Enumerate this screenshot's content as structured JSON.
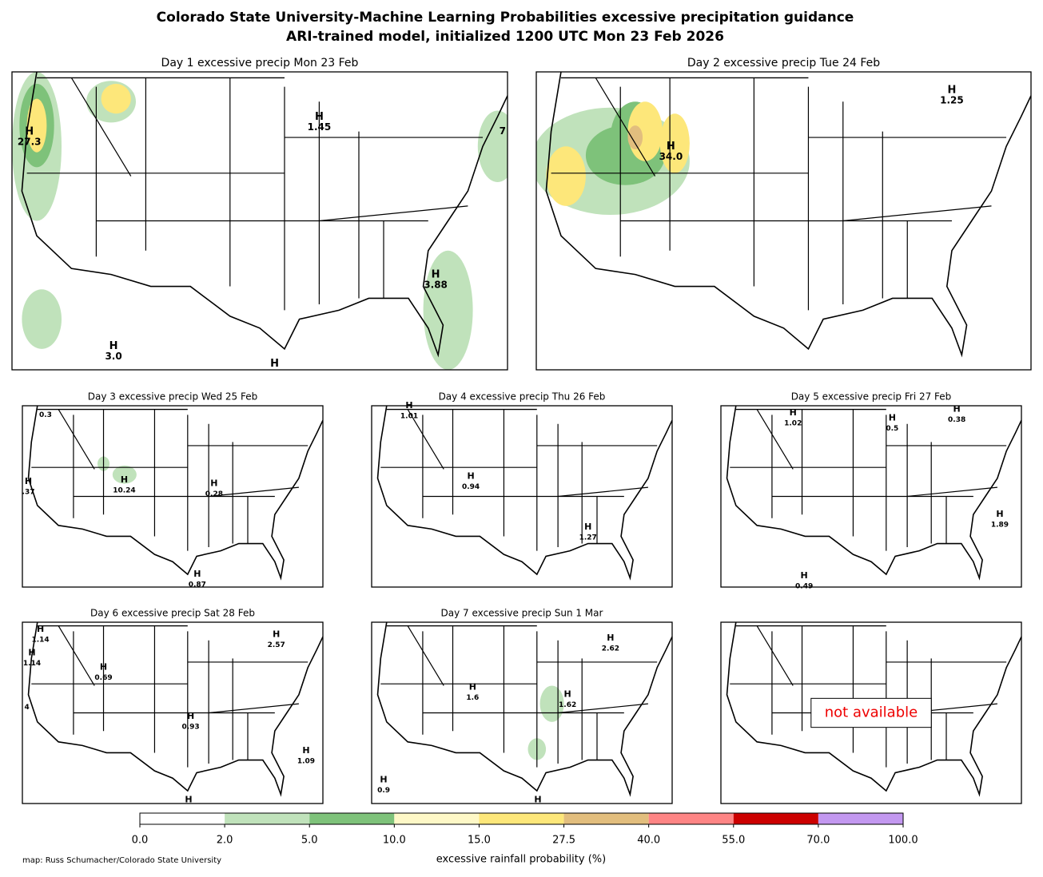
{
  "title": [
    "Colorado State University-Machine Learning Probabilities excessive precipitation guidance",
    "ARI-trained model, initialized 1200 UTC Mon 23 Feb 2026"
  ],
  "panels": [
    {
      "title": "Day 1 excessive precip  Mon 23 Feb",
      "maxima": [
        {
          "marker": "H",
          "value": "27.3"
        },
        {
          "marker": "H",
          "value": "1.45"
        },
        {
          "value": "7"
        },
        {
          "marker": "H",
          "value": "3.88"
        },
        {
          "marker": "H",
          "value": "3.0"
        },
        {
          "marker": "H"
        }
      ]
    },
    {
      "title": "Day 2 excessive precip  Tue 24 Feb",
      "maxima": [
        {
          "marker": "H",
          "value": "1.25"
        },
        {
          "marker": "H",
          "value": "34.0"
        }
      ]
    },
    {
      "title": "Day 3 excessive precip  Wed 25 Feb",
      "maxima": [
        {
          "value": "0.3"
        },
        {
          "marker": "H",
          "value": "10.24"
        },
        {
          "marker": "H",
          "value": "0.28"
        },
        {
          "marker": "H",
          "value": ".37"
        },
        {
          "marker": "H",
          "value": "0.87"
        }
      ]
    },
    {
      "title": "Day 4 excessive precip  Thu 26 Feb",
      "maxima": [
        {
          "marker": "H",
          "value": "1.01"
        },
        {
          "marker": "H",
          "value": "0.94"
        },
        {
          "marker": "H",
          "value": "1.27"
        }
      ]
    },
    {
      "title": "Day 5 excessive precip  Fri 27 Feb",
      "maxima": [
        {
          "marker": "H",
          "value": "1.02"
        },
        {
          "marker": "H",
          "value": "0.5"
        },
        {
          "marker": "H",
          "value": "0.38"
        },
        {
          "marker": "H",
          "value": "1.89"
        },
        {
          "marker": "H",
          "value": "0.49"
        }
      ]
    },
    {
      "title": "Day 6 excessive precip  Sat 28 Feb",
      "maxima": [
        {
          "marker": "H",
          "value": "1.14"
        },
        {
          "marker": "H",
          "value": "1.14"
        },
        {
          "marker": "H",
          "value": "0.69"
        },
        {
          "value": "4"
        },
        {
          "marker": "H",
          "value": "0.93"
        },
        {
          "marker": "H",
          "value": "2.57"
        },
        {
          "marker": "H",
          "value": "1.09"
        },
        {
          "marker": "H"
        }
      ]
    },
    {
      "title": "Day 7 excessive precip  Sun 1 Mar",
      "maxima": [
        {
          "marker": "H",
          "value": "2.62"
        },
        {
          "marker": "H",
          "value": "1.6"
        },
        {
          "marker": "H",
          "value": "1.62"
        },
        {
          "marker": "H",
          "value": "0.9"
        },
        {
          "marker": "H"
        }
      ]
    },
    {
      "unavailable": "not available"
    }
  ],
  "colorbar": {
    "ticks": [
      {
        "value": 0,
        "label": "0.0"
      },
      {
        "value": 2,
        "label": "2.0"
      },
      {
        "value": 5,
        "label": "5.0"
      },
      {
        "value": 10,
        "label": "10.0"
      },
      {
        "value": 15,
        "label": "15.0"
      },
      {
        "value": 27.5,
        "label": "27.5"
      },
      {
        "value": 40,
        "label": "40.0"
      },
      {
        "value": 55,
        "label": "55.0"
      },
      {
        "value": 70,
        "label": "70.0"
      },
      {
        "value": 100,
        "label": "100.0"
      }
    ],
    "colors": [
      "#ffffff",
      "#c0e2bb",
      "#7ec27a",
      "#fef8c7",
      "#fde77a",
      "#e2be7e",
      "#fe8585",
      "#cc0000",
      "#c398f0"
    ],
    "label": "excessive rainfall probability (%)"
  },
  "credit": "map: Russ Schumacher/Colorado State University"
}
